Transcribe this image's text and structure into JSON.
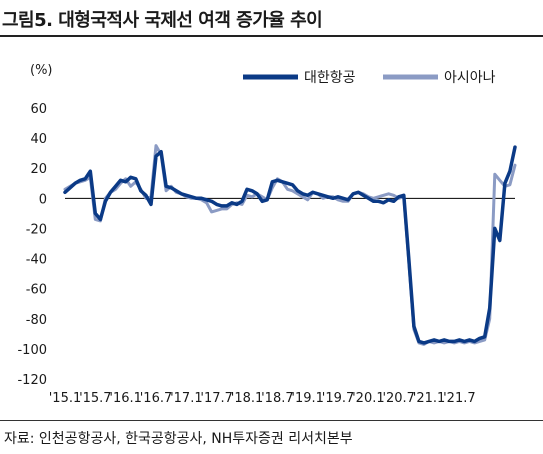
{
  "title": "그림5. 대형국적사 국제선 여객 증가율 추이",
  "source": "자료: 인천공항공사, 한국공항공사, NH투자증권 리서치본부",
  "colors": {
    "series1": "#0b3a86",
    "series2": "#8b9bc4"
  },
  "chart_data": {
    "type": "line",
    "ylabel": "(%)",
    "ylim": [
      -120,
      60
    ],
    "yticks": [
      60,
      40,
      20,
      0,
      -20,
      -40,
      -60,
      -80,
      -100,
      -120
    ],
    "xticks": [
      "'15.1",
      "'15.7",
      "'16.1",
      "'16.7",
      "'17.1",
      "'17.7",
      "'18.1",
      "'18.7",
      "'19.1",
      "'19.7",
      "'20.1",
      "'20.7",
      "'21.1",
      "'21.7"
    ],
    "grid": false,
    "legend": "top-right",
    "series": [
      {
        "name": "대한항공",
        "values": [
          4,
          7,
          10,
          12,
          13,
          18,
          -10,
          -14,
          -2,
          4,
          8,
          12,
          11,
          14,
          13,
          5,
          2,
          -4,
          28,
          31,
          8,
          7,
          5,
          3,
          2,
          1,
          0,
          0,
          -1,
          -2,
          -4,
          -5,
          -5,
          -3,
          -4,
          -2,
          6,
          5,
          3,
          -2,
          -1,
          11,
          12,
          11,
          10,
          9,
          5,
          3,
          2,
          4,
          3,
          2,
          1,
          0,
          1,
          0,
          -1,
          3,
          4,
          2,
          0,
          -2,
          -2,
          -3,
          -1,
          -2,
          1,
          2,
          -40,
          -85,
          -95,
          -96,
          -95,
          -94,
          -95,
          -94,
          -95,
          -95,
          -94,
          -95,
          -94,
          -95,
          -93,
          -92,
          -73,
          -20,
          -28,
          10,
          18,
          34
        ]
      },
      {
        "name": "아시아나",
        "values": [
          6,
          8,
          10,
          11,
          12,
          14,
          -14,
          -15,
          0,
          4,
          6,
          10,
          13,
          8,
          11,
          6,
          0,
          1,
          35,
          29,
          5,
          8,
          4,
          3,
          1,
          0,
          0,
          -1,
          -3,
          -9,
          -8,
          -7,
          -7,
          -4,
          -3,
          -4,
          2,
          1,
          3,
          1,
          -1,
          7,
          13,
          11,
          6,
          5,
          3,
          1,
          -1,
          4,
          3,
          0,
          1,
          1,
          -1,
          -2,
          -2,
          3,
          4,
          3,
          1,
          0,
          1,
          2,
          3,
          2,
          0,
          1,
          -42,
          -87,
          -96,
          -97,
          -95,
          -96,
          -95,
          -96,
          -95,
          -96,
          -95,
          -96,
          -95,
          -96,
          -95,
          -94,
          -80,
          16,
          12,
          8,
          9,
          22
        ]
      }
    ]
  }
}
